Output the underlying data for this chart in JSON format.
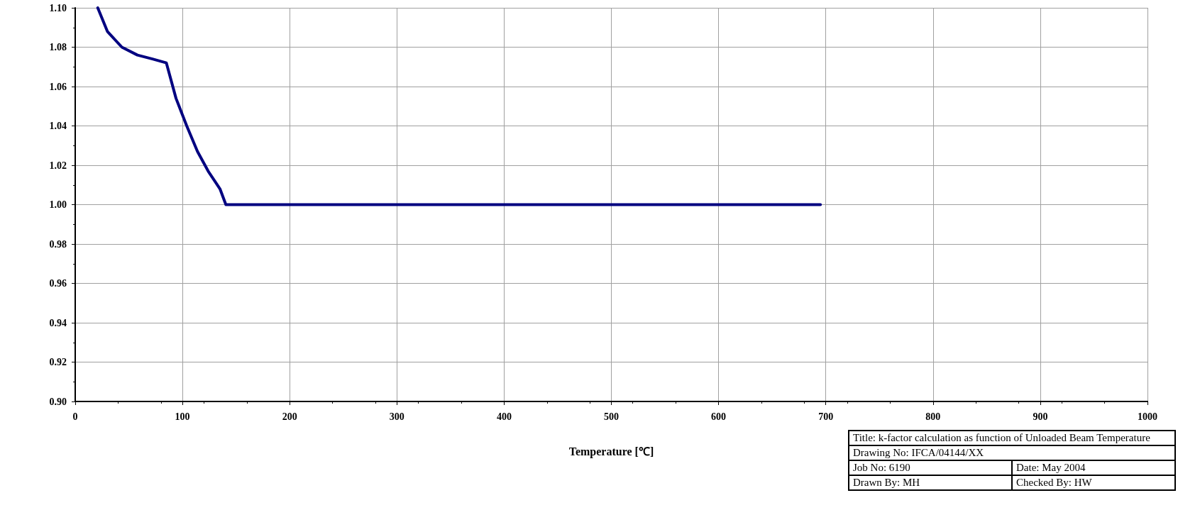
{
  "chart_data": {
    "type": "line",
    "xlabel": "Temperature [℃]",
    "x": [
      21,
      30,
      43.5,
      58,
      72,
      85,
      94,
      104,
      114,
      124,
      135,
      140.5,
      695
    ],
    "values": [
      1.1,
      1.088,
      1.08,
      1.076,
      1.074,
      1.072,
      1.054,
      1.04,
      1.027,
      1.017,
      1.008,
      1.0,
      1.0
    ],
    "color": "#000080",
    "marker": "none",
    "line_style": "solid",
    "grid": true,
    "xlim": [
      0,
      1000
    ],
    "xticks": [
      0,
      100,
      200,
      300,
      400,
      500,
      600,
      700,
      800,
      900,
      1000
    ],
    "ylim": [
      0.9,
      1.1
    ],
    "yticks": [
      {
        "value": 0.9,
        "label": "0.90"
      },
      0.92,
      0.94,
      0.96,
      0.98,
      {
        "value": 1,
        "label": "1.00"
      },
      1.02,
      1.04,
      1.06,
      1.08,
      {
        "value": 1.1,
        "label": "1.10"
      }
    ],
    "annotations": [
      "Title: k-factor calculation as function of Unloaded Beam Temperature",
      "Drawing No: IFCA/04144/XX",
      "Job No: 6190",
      "Date: May 2004",
      "Drawn By: MH",
      "Checked By: HW"
    ]
  }
}
